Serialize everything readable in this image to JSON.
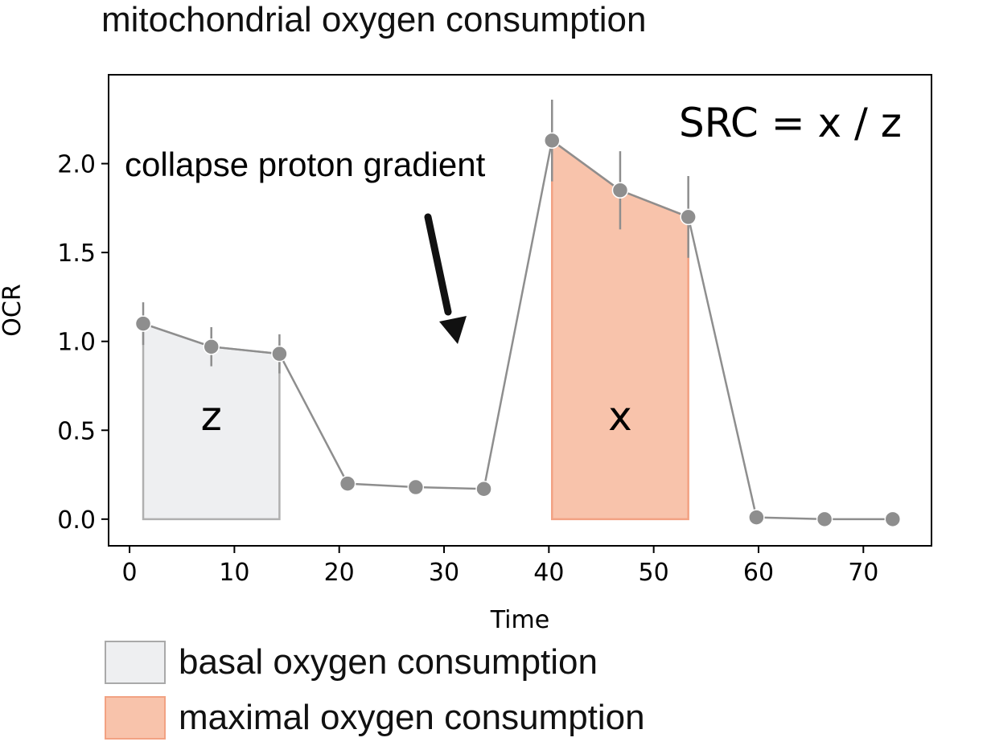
{
  "title": "mitochondrial oxygen consumption",
  "chart_data": {
    "type": "line",
    "xlabel": "Time",
    "ylabel": "OCR",
    "xlim": [
      -2,
      76.5
    ],
    "ylim": [
      -0.15,
      2.5
    ],
    "xticks": [
      0,
      10,
      20,
      30,
      40,
      50,
      60,
      70
    ],
    "yticks": [
      0.0,
      0.5,
      1.0,
      1.5,
      2.0
    ],
    "xtick_labels": [
      "0",
      "10",
      "20",
      "30",
      "40",
      "50",
      "60",
      "70"
    ],
    "ytick_labels": [
      "0.0",
      "0.5",
      "1.0",
      "1.5",
      "2.0"
    ],
    "grid": false,
    "series": [
      {
        "x": [
          1.3,
          7.8,
          14.3,
          20.8,
          27.3,
          33.8,
          40.3,
          46.8,
          53.3,
          59.8,
          66.3,
          72.8
        ],
        "y": [
          1.1,
          0.97,
          0.93,
          0.2,
          0.18,
          0.17,
          2.13,
          1.85,
          1.7,
          0.01,
          0.0,
          0.0
        ],
        "err": [
          0.12,
          0.11,
          0.11,
          0.02,
          0.02,
          0.02,
          0.23,
          0.22,
          0.23,
          0.02,
          0.02,
          0.02
        ],
        "color": "#8e8e8e"
      }
    ],
    "regions": [
      {
        "label": "z",
        "x": [
          1.3,
          7.8,
          14.3
        ],
        "y": [
          1.1,
          0.97,
          0.93
        ],
        "fill": "#eeeff1",
        "stroke": "#b0b0b0"
      },
      {
        "label": "x",
        "x": [
          40.3,
          46.8,
          53.3
        ],
        "y": [
          2.13,
          1.85,
          1.7
        ],
        "fill": "#f8c3ab",
        "stroke": "#f2a283"
      }
    ],
    "annotations": {
      "formula": "SRC = x / z",
      "arrow_text": "collapse proton gradient"
    },
    "legend": [
      {
        "label": "basal oxygen consumption",
        "fill": "#eeeff1",
        "stroke": "#a9a9a9"
      },
      {
        "label": "maximal oxygen consumption",
        "fill": "#f8c3ab",
        "stroke": "#f2a283"
      }
    ],
    "legend_position": "bottom-left"
  }
}
